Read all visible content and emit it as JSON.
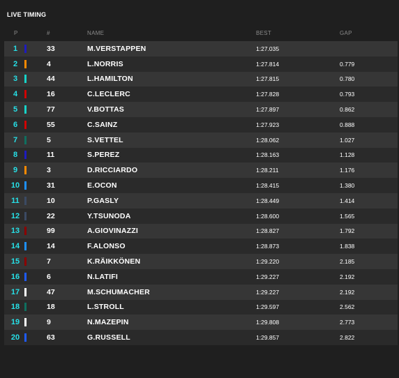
{
  "title": "LIVE TIMING",
  "columns": {
    "pos": "P",
    "num": "#",
    "name": "NAME",
    "best": "BEST",
    "gap": "GAP"
  },
  "rows": [
    {
      "pos": "1",
      "num": "33",
      "name": "M.VERSTAPPEN",
      "best": "1:27.035",
      "gap": "",
      "color": "#1e1bbf"
    },
    {
      "pos": "2",
      "num": "4",
      "name": "L.NORRIS",
      "best": "1:27.814",
      "gap": "0.779",
      "color": "#ff8a00"
    },
    {
      "pos": "3",
      "num": "44",
      "name": "L.HAMILTON",
      "best": "1:27.815",
      "gap": "0.780",
      "color": "#17d3c8"
    },
    {
      "pos": "4",
      "num": "16",
      "name": "C.LECLERC",
      "best": "1:27.828",
      "gap": "0.793",
      "color": "#d10000"
    },
    {
      "pos": "5",
      "num": "77",
      "name": "V.BOTTAS",
      "best": "1:27.897",
      "gap": "0.862",
      "color": "#17d3c8"
    },
    {
      "pos": "6",
      "num": "55",
      "name": "C.SAINZ",
      "best": "1:27.923",
      "gap": "0.888",
      "color": "#d10000"
    },
    {
      "pos": "7",
      "num": "5",
      "name": "S.VETTEL",
      "best": "1:28.062",
      "gap": "1.027",
      "color": "#0f6f5f"
    },
    {
      "pos": "8",
      "num": "11",
      "name": "S.PEREZ",
      "best": "1:28.163",
      "gap": "1.128",
      "color": "#1e1bbf"
    },
    {
      "pos": "9",
      "num": "3",
      "name": "D.RICCIARDO",
      "best": "1:28.211",
      "gap": "1.176",
      "color": "#ff8a00"
    },
    {
      "pos": "10",
      "num": "31",
      "name": "E.OCON",
      "best": "1:28.415",
      "gap": "1.380",
      "color": "#1e90ff"
    },
    {
      "pos": "11",
      "num": "10",
      "name": "P.GASLY",
      "best": "1:28.449",
      "gap": "1.414",
      "color": "#3b4a63"
    },
    {
      "pos": "12",
      "num": "22",
      "name": "Y.TSUNODA",
      "best": "1:28.600",
      "gap": "1.565",
      "color": "#3b4a63"
    },
    {
      "pos": "13",
      "num": "99",
      "name": "A.GIOVINAZZI",
      "best": "1:28.827",
      "gap": "1.792",
      "color": "#8b0000"
    },
    {
      "pos": "14",
      "num": "14",
      "name": "F.ALONSO",
      "best": "1:28.873",
      "gap": "1.838",
      "color": "#1e90ff"
    },
    {
      "pos": "15",
      "num": "7",
      "name": "K.RÄIKKÖNEN",
      "best": "1:29.220",
      "gap": "2.185",
      "color": "#8b0000"
    },
    {
      "pos": "16",
      "num": "6",
      "name": "N.LATIFI",
      "best": "1:29.227",
      "gap": "2.192",
      "color": "#1e5bff"
    },
    {
      "pos": "17",
      "num": "47",
      "name": "M.SCHUMACHER",
      "best": "1:29.227",
      "gap": "2.192",
      "color": "#ffffff"
    },
    {
      "pos": "18",
      "num": "18",
      "name": "L.STROLL",
      "best": "1:29.597",
      "gap": "2.562",
      "color": "#0f6f5f"
    },
    {
      "pos": "19",
      "num": "9",
      "name": "N.MAZEPIN",
      "best": "1:29.808",
      "gap": "2.773",
      "color": "#ffffff"
    },
    {
      "pos": "20",
      "num": "63",
      "name": "G.RUSSELL",
      "best": "1:29.857",
      "gap": "2.822",
      "color": "#1e5bff"
    }
  ]
}
